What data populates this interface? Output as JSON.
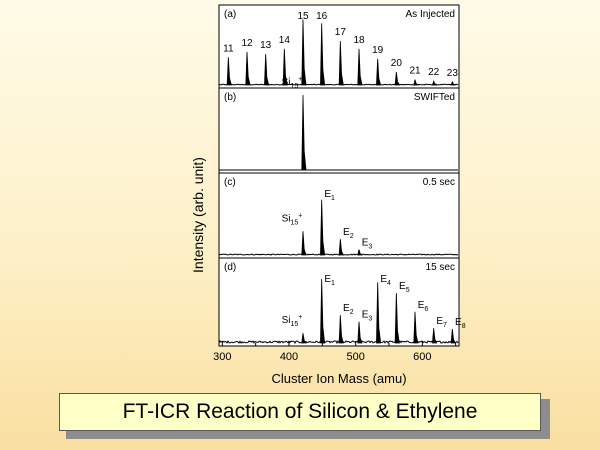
{
  "caption": "FT-ICR Reaction of Silicon & Ethylene",
  "colors": {
    "trace": "#000000",
    "plot_background": "#ffffff",
    "caption_background": "#ffffc8"
  },
  "chart_data": {
    "type": "line",
    "xlabel": "Cluster Ion Mass (amu)",
    "ylabel": "Intensity  (arb. unit)",
    "xlim": [
      295,
      655
    ],
    "xticks": [
      300,
      400,
      500,
      600
    ],
    "grid": false,
    "panels": [
      {
        "tag": "(a)",
        "condition": "As Injected",
        "peaks": [
          {
            "x": 309,
            "y": 0.36,
            "label": "11"
          },
          {
            "x": 337,
            "y": 0.43,
            "label": "12"
          },
          {
            "x": 365,
            "y": 0.4,
            "label": "13"
          },
          {
            "x": 393,
            "y": 0.47,
            "label": "14"
          },
          {
            "x": 421,
            "y": 0.85,
            "label": "15"
          },
          {
            "x": 449,
            "y": 0.8,
            "label": "16"
          },
          {
            "x": 477,
            "y": 0.57,
            "label": "17"
          },
          {
            "x": 505,
            "y": 0.47,
            "label": "18"
          },
          {
            "x": 533,
            "y": 0.34,
            "label": "19"
          },
          {
            "x": 561,
            "y": 0.17,
            "label": "20"
          },
          {
            "x": 589,
            "y": 0.07,
            "label": "21"
          },
          {
            "x": 617,
            "y": 0.05,
            "label": "22"
          },
          {
            "x": 645,
            "y": 0.04,
            "label": "23"
          }
        ]
      },
      {
        "tag": "(b)",
        "condition": "SWIFTed",
        "peaks": [
          {
            "x": 421,
            "y": 0.95,
            "label": "Si15+"
          }
        ]
      },
      {
        "tag": "(c)",
        "condition": "0.5 sec",
        "peaks": [
          {
            "x": 421,
            "y": 0.3,
            "label": "Si15+"
          },
          {
            "x": 449,
            "y": 0.7,
            "label": "E1"
          },
          {
            "x": 477,
            "y": 0.2,
            "label": "E2"
          },
          {
            "x": 505,
            "y": 0.07,
            "label": "E3"
          }
        ]
      },
      {
        "tag": "(d)",
        "condition": "15 sec",
        "peaks": [
          {
            "x": 421,
            "y": 0.12,
            "label": "Si15+"
          },
          {
            "x": 449,
            "y": 0.78,
            "label": "E1"
          },
          {
            "x": 477,
            "y": 0.34,
            "label": "E2"
          },
          {
            "x": 505,
            "y": 0.26,
            "label": "E3"
          },
          {
            "x": 533,
            "y": 0.74,
            "label": "E4"
          },
          {
            "x": 561,
            "y": 0.61,
            "label": "E5"
          },
          {
            "x": 589,
            "y": 0.38,
            "label": "E6"
          },
          {
            "x": 617,
            "y": 0.18,
            "label": "E7"
          },
          {
            "x": 645,
            "y": 0.17,
            "label": "E8"
          }
        ]
      }
    ]
  }
}
